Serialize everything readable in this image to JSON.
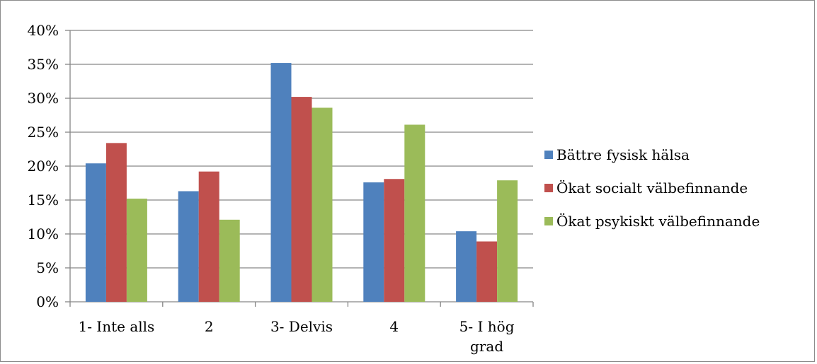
{
  "chart_data": {
    "type": "bar",
    "categories": [
      [
        "1- Inte alls"
      ],
      [
        "2"
      ],
      [
        "3- Delvis"
      ],
      [
        "4"
      ],
      [
        "5- I hög",
        "grad"
      ]
    ],
    "series": [
      {
        "name": "Bättre fysisk hälsa",
        "color": "#4f81bd",
        "values": [
          20.4,
          16.3,
          35.2,
          17.6,
          10.4
        ]
      },
      {
        "name": "Ökat socialt välbefinnande",
        "color": "#c0504d",
        "values": [
          23.4,
          19.2,
          30.2,
          18.1,
          8.9
        ]
      },
      {
        "name": "Ökat psykiskt välbefinnande",
        "color": "#9bbb59",
        "values": [
          15.2,
          12.1,
          28.6,
          26.1,
          17.9
        ]
      }
    ],
    "ylim": [
      0,
      40
    ],
    "yticks": [
      "0%",
      "5%",
      "10%",
      "15%",
      "20%",
      "25%",
      "30%",
      "35%",
      "40%"
    ],
    "ytick_values": [
      0,
      5,
      10,
      15,
      20,
      25,
      30,
      35,
      40
    ],
    "grid": true,
    "legend_position": "right",
    "title": "",
    "xlabel": "",
    "ylabel": ""
  }
}
